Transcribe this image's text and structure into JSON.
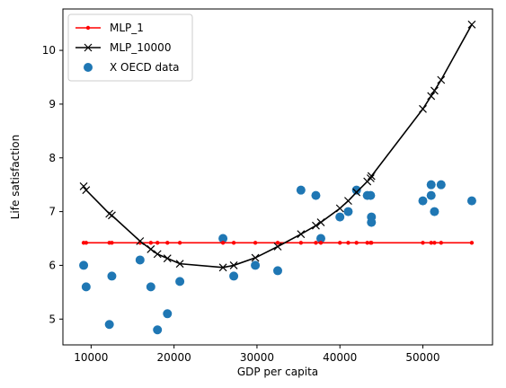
{
  "chart_data": {
    "type": "line",
    "xlabel": "GDP per capita",
    "ylabel": "Life satisfaction",
    "xlim": [
      6600,
      58400
    ],
    "ylim": [
      4.52,
      10.77
    ],
    "xticks": [
      10000,
      20000,
      30000,
      40000,
      50000
    ],
    "xtick_labels": [
      "10000",
      "20000",
      "30000",
      "40000",
      "50000"
    ],
    "yticks": [
      5,
      6,
      7,
      8,
      9,
      10
    ],
    "ytick_labels": [
      "5",
      "6",
      "7",
      "8",
      "9",
      "10"
    ],
    "legend_position": "upper-left",
    "grid": false,
    "colors": {
      "mlp_1": "#ff0000",
      "mlp_10000": "#000000",
      "oecd": "#1f77b4"
    },
    "series": [
      {
        "name": "MLP_1",
        "kind": "line",
        "marker": "dot",
        "color": "#ff0000",
        "x": [
          9100,
          9400,
          12200,
          12500,
          15900,
          17200,
          18000,
          19200,
          20700,
          25900,
          27200,
          29800,
          32500,
          35300,
          37100,
          37700,
          40000,
          41000,
          42000,
          43300,
          43700,
          43800,
          50000,
          51000,
          51400,
          52200,
          55900
        ],
        "y": [
          6.42,
          6.42,
          6.42,
          6.42,
          6.42,
          6.42,
          6.42,
          6.42,
          6.42,
          6.42,
          6.42,
          6.42,
          6.42,
          6.42,
          6.42,
          6.42,
          6.42,
          6.42,
          6.42,
          6.42,
          6.42,
          6.42,
          6.42,
          6.42,
          6.42,
          6.42,
          6.42
        ]
      },
      {
        "name": "MLP_10000",
        "kind": "line",
        "marker": "x",
        "color": "#000000",
        "x": [
          9100,
          9400,
          12200,
          12500,
          15900,
          17200,
          18000,
          19200,
          20700,
          25900,
          27200,
          29800,
          32500,
          35300,
          37100,
          37700,
          40000,
          41000,
          42000,
          43300,
          43700,
          43800,
          50000,
          51000,
          51400,
          52200,
          55900
        ],
        "y": [
          7.47,
          7.4,
          6.96,
          6.93,
          6.45,
          6.3,
          6.21,
          6.13,
          6.03,
          5.96,
          6.0,
          6.14,
          6.35,
          6.58,
          6.74,
          6.8,
          7.06,
          7.2,
          7.36,
          7.56,
          7.62,
          7.66,
          8.91,
          9.15,
          9.25,
          9.45,
          10.48
        ]
      },
      {
        "name": "X OECD data",
        "kind": "scatter",
        "marker": "circle",
        "color": "#1f77b4",
        "x": [
          9100,
          9400,
          12200,
          12500,
          15900,
          17200,
          18000,
          19200,
          20700,
          25900,
          27200,
          29800,
          32500,
          35300,
          37100,
          37700,
          40000,
          41000,
          42000,
          43300,
          43700,
          43800,
          43800,
          50000,
          51000,
          51000,
          51400,
          52200,
          55900
        ],
        "y": [
          6.0,
          5.6,
          4.9,
          5.8,
          6.1,
          5.6,
          4.8,
          5.1,
          5.7,
          6.5,
          5.8,
          6.0,
          5.9,
          7.4,
          7.3,
          6.5,
          6.9,
          7.0,
          7.4,
          7.3,
          7.3,
          6.9,
          6.8,
          7.2,
          7.5,
          7.3,
          7.0,
          7.5,
          7.2
        ]
      }
    ]
  }
}
